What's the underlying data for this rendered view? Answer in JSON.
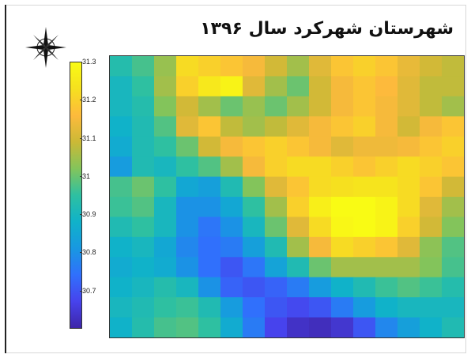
{
  "title": "شهرستان شهرکرد سال ۱۳۹۶",
  "north_arrow": {
    "icon": "compass-rose-icon"
  },
  "colorbar": {
    "min": 30.6,
    "max": 31.3,
    "ticks": [
      "31.3",
      "31.2",
      "31.1",
      "31",
      "30.9",
      "30.8",
      "30.7"
    ],
    "tick_values": [
      31.3,
      31.2,
      31.1,
      31.0,
      30.9,
      30.8,
      30.7
    ],
    "colormap": [
      "#3e26a8",
      "#4743ed",
      "#3070fc",
      "#1898e1",
      "#10b2c9",
      "#2ec0a1",
      "#83c45b",
      "#cbb936",
      "#fdba3c",
      "#f6e01f",
      "#f9fb14"
    ]
  },
  "chart_data": {
    "type": "heatmap",
    "title": "شهرستان شهرکرد سال ۱۳۹۶",
    "rows": 14,
    "cols": 16,
    "zlim": [
      30.6,
      31.3
    ],
    "grid": false,
    "values": [
      [
        30.93,
        30.97,
        31.04,
        31.22,
        31.2,
        31.18,
        31.15,
        31.1,
        31.05,
        31.12,
        31.18,
        31.2,
        31.18,
        31.13,
        31.1,
        31.08
      ],
      [
        30.9,
        30.95,
        31.05,
        31.2,
        31.25,
        31.28,
        31.12,
        31.05,
        31.0,
        31.1,
        31.15,
        31.18,
        31.16,
        31.12,
        31.08,
        31.08
      ],
      [
        30.9,
        30.93,
        31.02,
        31.1,
        31.05,
        31.0,
        31.04,
        31.0,
        31.05,
        31.1,
        31.15,
        31.18,
        31.15,
        31.12,
        31.08,
        31.05
      ],
      [
        30.88,
        30.92,
        30.98,
        31.12,
        31.18,
        31.08,
        31.05,
        31.08,
        31.12,
        31.15,
        31.18,
        31.2,
        31.15,
        31.1,
        31.15,
        31.18
      ],
      [
        30.86,
        30.92,
        30.95,
        31.0,
        31.1,
        31.15,
        31.18,
        31.2,
        31.18,
        31.15,
        31.12,
        31.14,
        31.14,
        31.15,
        31.18,
        31.2
      ],
      [
        30.82,
        30.92,
        30.9,
        30.95,
        30.98,
        31.05,
        31.15,
        31.2,
        31.22,
        31.22,
        31.2,
        31.18,
        31.2,
        31.22,
        31.2,
        31.18
      ],
      [
        30.97,
        31.0,
        30.95,
        30.85,
        30.83,
        30.92,
        31.02,
        31.12,
        31.18,
        31.22,
        31.23,
        31.24,
        31.24,
        31.22,
        31.18,
        31.1
      ],
      [
        30.96,
        30.98,
        30.9,
        30.8,
        30.8,
        30.85,
        30.95,
        31.05,
        31.2,
        31.27,
        31.3,
        31.3,
        31.28,
        31.22,
        31.12,
        31.05
      ],
      [
        30.92,
        30.95,
        30.9,
        30.8,
        30.75,
        30.8,
        30.9,
        31.0,
        31.12,
        31.22,
        31.29,
        31.3,
        31.28,
        31.2,
        31.1,
        31.02
      ],
      [
        30.88,
        30.9,
        30.85,
        30.78,
        30.74,
        30.76,
        30.83,
        30.92,
        31.05,
        31.15,
        31.22,
        31.2,
        31.18,
        31.12,
        31.03,
        30.98
      ],
      [
        30.86,
        30.88,
        30.86,
        30.8,
        30.74,
        30.7,
        30.75,
        30.84,
        30.92,
        31.0,
        31.05,
        31.05,
        31.05,
        31.05,
        31.02,
        30.97
      ],
      [
        30.88,
        30.9,
        30.93,
        30.9,
        30.8,
        30.72,
        30.7,
        30.72,
        30.76,
        30.82,
        30.88,
        30.92,
        30.96,
        30.98,
        30.96,
        30.93
      ],
      [
        30.9,
        30.92,
        30.95,
        30.96,
        30.92,
        30.82,
        30.74,
        30.7,
        30.68,
        30.7,
        30.76,
        30.82,
        30.88,
        30.9,
        30.9,
        30.9
      ],
      [
        30.88,
        30.93,
        30.97,
        30.98,
        30.95,
        30.86,
        30.76,
        30.67,
        30.63,
        30.62,
        30.64,
        30.7,
        30.78,
        30.83,
        30.88,
        30.92
      ]
    ]
  }
}
